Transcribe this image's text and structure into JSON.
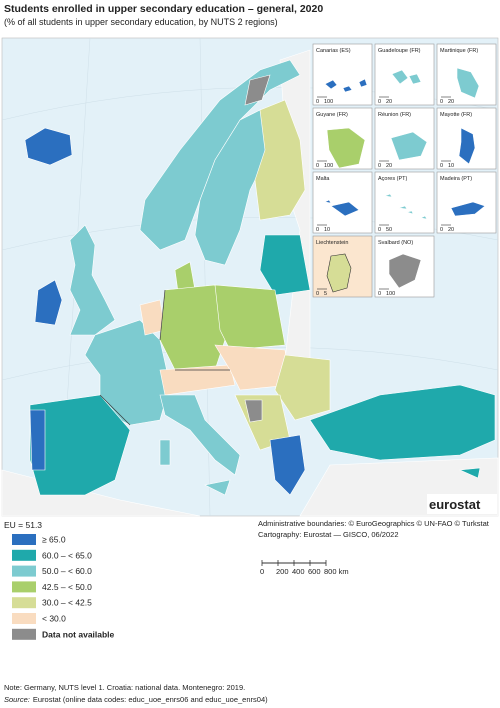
{
  "header": {
    "title": "Students enrolled in upper secondary education – general, 2020",
    "subtitle": "(% of all students in upper secondary education, by NUTS 2 regions)"
  },
  "insets": [
    {
      "label": "Canarias (ES)",
      "scale": [
        "0",
        "100"
      ]
    },
    {
      "label": "Guadeloupe (FR)",
      "scale": [
        "0",
        "20"
      ]
    },
    {
      "label": "Martinique (FR)",
      "scale": [
        "0",
        "20"
      ]
    },
    {
      "label": "Guyane (FR)",
      "scale": [
        "0",
        "100"
      ]
    },
    {
      "label": "Réunion (FR)",
      "scale": [
        "0",
        "20"
      ]
    },
    {
      "label": "Mayotte (FR)",
      "scale": [
        "0",
        "10"
      ]
    },
    {
      "label": "Malta",
      "scale": [
        "0",
        "10"
      ]
    },
    {
      "label": "Açores (PT)",
      "scale": [
        "0",
        "50"
      ]
    },
    {
      "label": "Madeira (PT)",
      "scale": [
        "0",
        "20"
      ]
    },
    {
      "label": "Liechtenstein",
      "scale": [
        "0",
        "5"
      ]
    },
    {
      "label": "Svalbard (NO)",
      "scale": [
        "0",
        "100"
      ]
    }
  ],
  "logo": "eurostat",
  "legend": {
    "summary": "EU = 51.3",
    "items": [
      {
        "label": "≥ 65.0",
        "color": "#2b6fbf"
      },
      {
        "label": "60.0 – < 65.0",
        "color": "#1fa9ab"
      },
      {
        "label": "50.0 – < 60.0",
        "color": "#7dcbd0"
      },
      {
        "label": "42.5 – < 50.0",
        "color": "#a9cf6b"
      },
      {
        "label": "30.0 – < 42.5",
        "color": "#d6dd96"
      },
      {
        "label": "< 30.0",
        "color": "#f9dcc0"
      },
      {
        "label": "Data not available",
        "color": "#8c8c8c"
      }
    ]
  },
  "credits": [
    "Administrative boundaries: © EuroGeographics © UN-FAO © Turkstat",
    "Cartography: Eurostat — GISCO, 06/2022"
  ],
  "scale_bar": {
    "ticks": [
      "0",
      "200",
      "400",
      "600",
      "800 km"
    ]
  },
  "note": "Note: Germany, NUTS level 1. Croatia: national data. Montenegro: 2019.",
  "source": {
    "label": "Source:",
    "text": "Eurostat (online data codes: educ_uoe_enrs06 and educ_uoe_enrs04)"
  }
}
